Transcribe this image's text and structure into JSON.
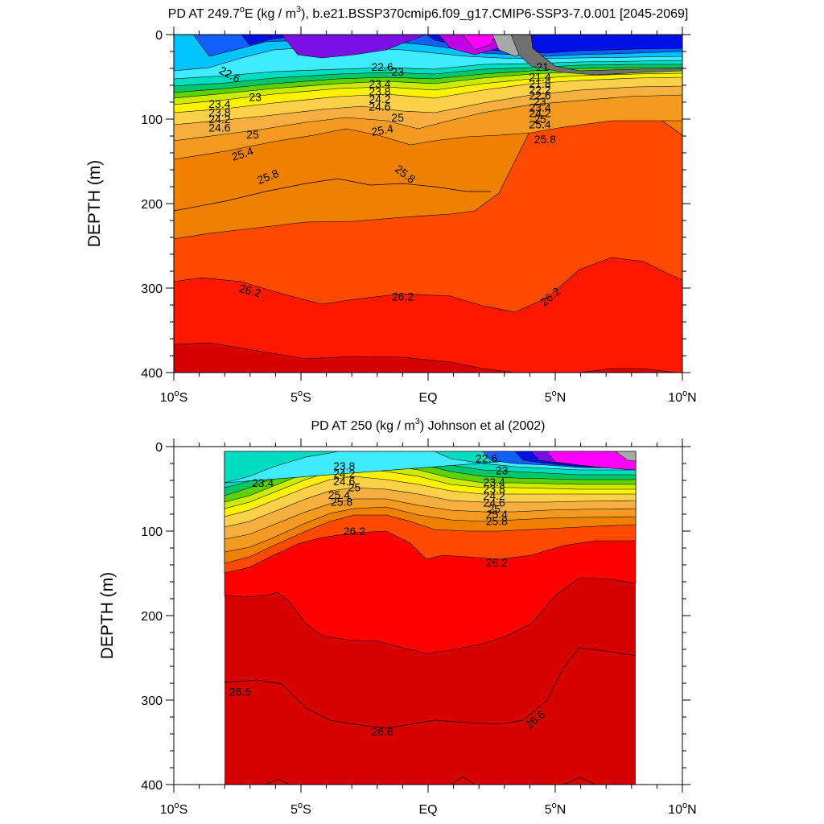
{
  "chart_data": [
    {
      "type": "heatmap",
      "title": "PD AT 249.7°E (kg / m³), b.e21.BSSP370cmip6.f09_g17.CMIP6-SSP3-7.0.001 [2045-2069]",
      "title_parts": {
        "prefix": "PD AT 249.7",
        "superscript_1": "o",
        "middle": "E (kg / m",
        "superscript_2": "3",
        "suffix": "), b.e21.BSSP370cmip6.f09_g17.CMIP6-SSP3-7.0.001 [2045-2069]"
      },
      "ylabel": "DEPTH (m)",
      "xlabel": "",
      "xlim": [
        -10,
        10
      ],
      "ylim": [
        400,
        0
      ],
      "y_reversed": true,
      "x_ticks": [
        {
          "value": -10,
          "label": "10°S",
          "base": "10",
          "deg": "o",
          "hemi": "S"
        },
        {
          "value": -5,
          "label": "5°S",
          "base": "5",
          "deg": "o",
          "hemi": "S"
        },
        {
          "value": 0,
          "label": "EQ",
          "base": "EQ",
          "deg": "",
          "hemi": ""
        },
        {
          "value": 5,
          "label": "5°N",
          "base": "5",
          "deg": "o",
          "hemi": "N"
        },
        {
          "value": 10,
          "label": "10°N",
          "base": "10",
          "deg": "o",
          "hemi": "N"
        }
      ],
      "y_ticks": [
        0,
        100,
        200,
        300,
        400
      ],
      "data_x_range": [
        -9.8,
        10
      ],
      "contour_interval": 0.2,
      "contour_labels": [
        {
          "value": "22.6",
          "x": -7.8,
          "y": 47,
          "angle": 28
        },
        {
          "value": "23",
          "x": -6.8,
          "y": 74,
          "angle": 0
        },
        {
          "value": "23.4",
          "x": -8.2,
          "y": 82,
          "angle": 0
        },
        {
          "value": "23.8",
          "x": -8.2,
          "y": 92,
          "angle": 0
        },
        {
          "value": "24.2",
          "x": -8.2,
          "y": 100,
          "angle": 0
        },
        {
          "value": "24.6",
          "x": -8.2,
          "y": 110,
          "angle": 0
        },
        {
          "value": "25",
          "x": -6.9,
          "y": 118,
          "angle": 0
        },
        {
          "value": "25.4",
          "x": -7.3,
          "y": 141,
          "angle": -18
        },
        {
          "value": "25.8",
          "x": -6.3,
          "y": 168,
          "angle": -22
        },
        {
          "value": "22.6",
          "x": -1.8,
          "y": 38,
          "angle": 0
        },
        {
          "value": "23",
          "x": -1.2,
          "y": 44,
          "angle": 0
        },
        {
          "value": "23.4",
          "x": -1.9,
          "y": 58,
          "angle": 0
        },
        {
          "value": "23.8",
          "x": -1.9,
          "y": 67,
          "angle": 0
        },
        {
          "value": "24.2",
          "x": -1.9,
          "y": 76,
          "angle": 0
        },
        {
          "value": "24.6",
          "x": -1.9,
          "y": 85,
          "angle": 0
        },
        {
          "value": "25",
          "x": -1.2,
          "y": 98,
          "angle": 0
        },
        {
          "value": "25.4",
          "x": -1.8,
          "y": 113,
          "angle": -10
        },
        {
          "value": "25.8",
          "x": -0.9,
          "y": 165,
          "angle": 38
        },
        {
          "value": "21",
          "x": 4.5,
          "y": 38,
          "angle": 0
        },
        {
          "value": "21.4",
          "x": 4.4,
          "y": 50,
          "angle": 0
        },
        {
          "value": "21.8",
          "x": 4.4,
          "y": 58,
          "angle": 0
        },
        {
          "value": "22.2",
          "x": 4.4,
          "y": 65,
          "angle": 0
        },
        {
          "value": "22.6",
          "x": 4.4,
          "y": 72,
          "angle": 0
        },
        {
          "value": "23",
          "x": 4.4,
          "y": 79,
          "angle": 0
        },
        {
          "value": "23.4",
          "x": 4.4,
          "y": 86,
          "angle": 0
        },
        {
          "value": "24.2",
          "x": 4.4,
          "y": 93,
          "angle": 0
        },
        {
          "value": "25",
          "x": 4.4,
          "y": 100,
          "angle": 0
        },
        {
          "value": "25.4",
          "x": 4.4,
          "y": 106,
          "angle": 0
        },
        {
          "value": "25.8",
          "x": 4.6,
          "y": 124,
          "angle": 0
        },
        {
          "value": "26.2",
          "x": -7.0,
          "y": 303,
          "angle": 15
        },
        {
          "value": "26.2",
          "x": -1.0,
          "y": 310,
          "angle": 0
        },
        {
          "value": "26.2",
          "x": 4.8,
          "y": 310,
          "angle": -40
        }
      ]
    },
    {
      "type": "heatmap",
      "title": "PD AT 250 (kg / m³) Johnson et al (2002)",
      "title_parts": {
        "prefix": "PD AT 250 (kg / m",
        "superscript_1": "3",
        "suffix": ") Johnson et al (2002)"
      },
      "ylabel": "DEPTH (m)",
      "xlabel": "",
      "xlim": [
        -10,
        10
      ],
      "ylim": [
        400,
        0
      ],
      "y_reversed": true,
      "x_ticks": [
        {
          "value": -10,
          "label": "10°S",
          "base": "10",
          "deg": "o",
          "hemi": "S"
        },
        {
          "value": -5,
          "label": "5°S",
          "base": "5",
          "deg": "o",
          "hemi": "S"
        },
        {
          "value": 0,
          "label": "EQ",
          "base": "EQ",
          "deg": "",
          "hemi": ""
        },
        {
          "value": 5,
          "label": "5°N",
          "base": "5",
          "deg": "o",
          "hemi": "N"
        },
        {
          "value": 10,
          "label": "10°N",
          "base": "10",
          "deg": "o",
          "hemi": "N"
        }
      ],
      "y_ticks": [
        0,
        100,
        200,
        300,
        400
      ],
      "data_x_range": [
        -8,
        8.2
      ],
      "contour_interval": 0.2,
      "contour_labels": [
        {
          "value": "23.4",
          "x": -6.5,
          "y": 43,
          "angle": 0
        },
        {
          "value": "23.8",
          "x": -3.3,
          "y": 23,
          "angle": 0
        },
        {
          "value": "24.2",
          "x": -3.3,
          "y": 32,
          "angle": 0
        },
        {
          "value": "24.6",
          "x": -3.3,
          "y": 41,
          "angle": 0
        },
        {
          "value": "25",
          "x": -2.9,
          "y": 48,
          "angle": 0
        },
        {
          "value": "25.4",
          "x": -3.5,
          "y": 57,
          "angle": 0
        },
        {
          "value": "25.8",
          "x": -3.4,
          "y": 65,
          "angle": 0
        },
        {
          "value": "22.6",
          "x": 2.3,
          "y": 14,
          "angle": 0
        },
        {
          "value": "23",
          "x": 2.9,
          "y": 28,
          "angle": 0
        },
        {
          "value": "23.4",
          "x": 2.6,
          "y": 42,
          "angle": 0
        },
        {
          "value": "23.8",
          "x": 2.6,
          "y": 50,
          "angle": 0
        },
        {
          "value": "24.2",
          "x": 2.6,
          "y": 58,
          "angle": 0
        },
        {
          "value": "24.6",
          "x": 2.6,
          "y": 66,
          "angle": 0
        },
        {
          "value": "25",
          "x": 2.6,
          "y": 74,
          "angle": 0
        },
        {
          "value": "25.4",
          "x": 2.7,
          "y": 80,
          "angle": 0
        },
        {
          "value": "25.8",
          "x": 2.7,
          "y": 88,
          "angle": 0
        },
        {
          "value": "26.2",
          "x": -2.9,
          "y": 100,
          "angle": 0
        },
        {
          "value": "26.2",
          "x": 2.7,
          "y": 137,
          "angle": 0
        },
        {
          "value": "26.6",
          "x": -7.4,
          "y": 290,
          "angle": 0
        },
        {
          "value": "26.6",
          "x": -1.8,
          "y": 337,
          "angle": 0
        },
        {
          "value": "26.6",
          "x": 4.2,
          "y": 323,
          "angle": -40
        }
      ]
    }
  ]
}
